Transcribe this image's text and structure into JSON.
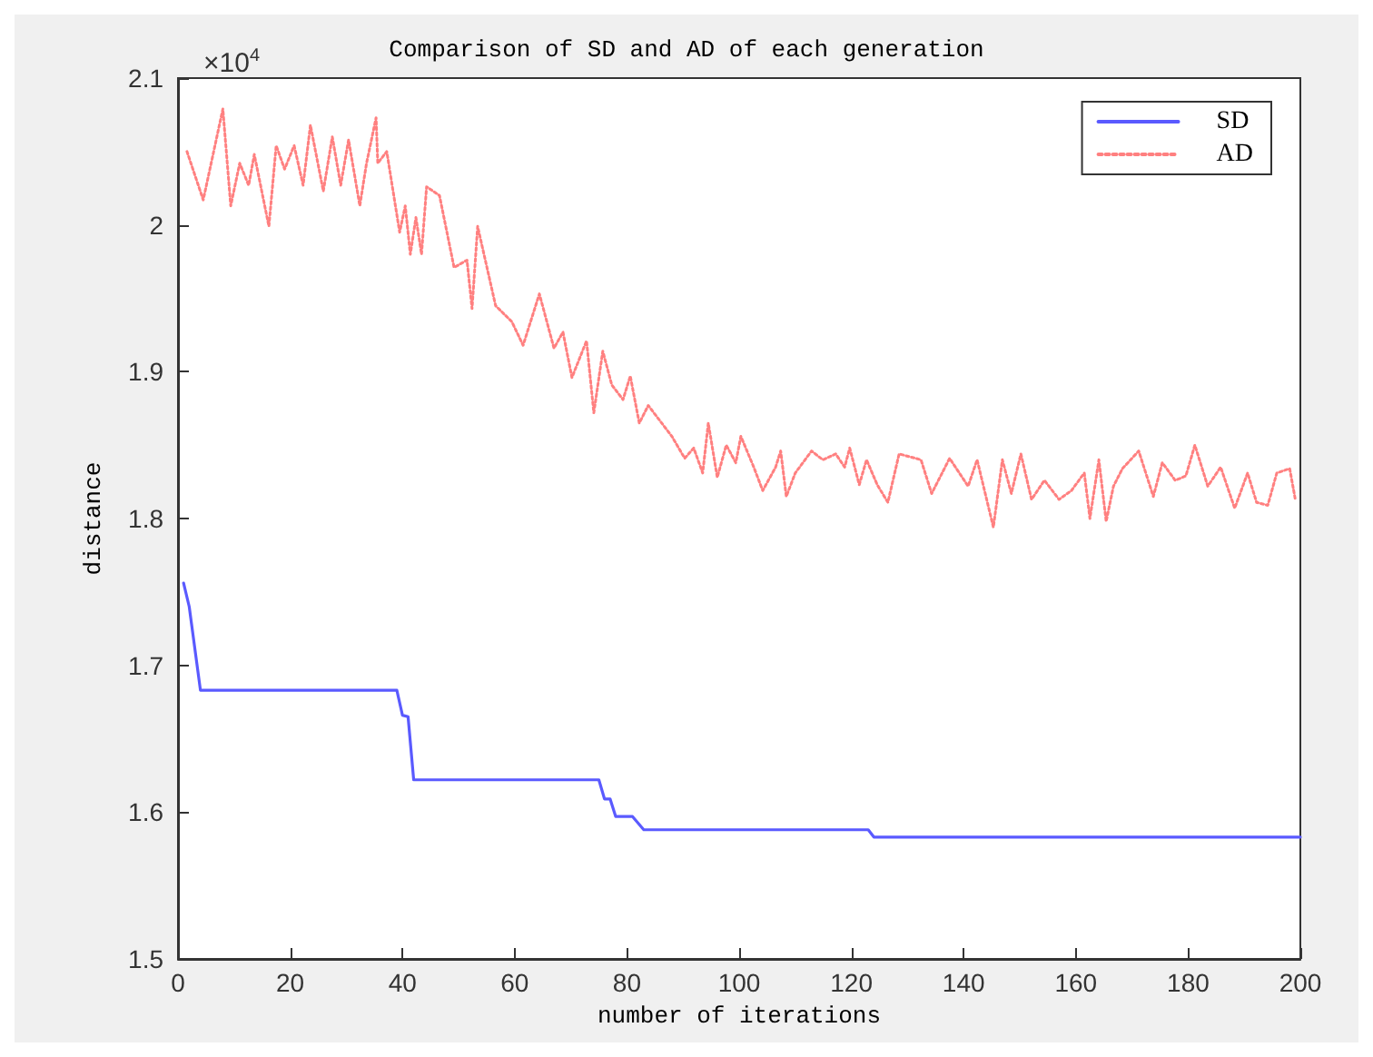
{
  "chart_data": {
    "type": "line",
    "title": "Comparison of SD and AD of each generation",
    "xlabel": "number of iterations",
    "ylabel": "distance",
    "annotations": [
      "×10$^{4}$"
    ],
    "xlim": [
      0,
      200
    ],
    "xticks": [
      0,
      20,
      40,
      60,
      80,
      100,
      120,
      140,
      160,
      180,
      200
    ],
    "ylim": [
      1.5,
      2.1
    ],
    "yticks": [
      1.5,
      1.6,
      1.7,
      1.8,
      1.9,
      2,
      2.1
    ],
    "grid": false,
    "legend": "top right",
    "marker": "none",
    "series": [
      {
        "name": "SD",
        "color": "#5a5aff",
        "line_style": "solid",
        "x": [
          1,
          2,
          4,
          39,
          40,
          41,
          42,
          75,
          76,
          77,
          78,
          81,
          83,
          123,
          124,
          200
        ],
        "values": [
          1.756,
          1.74,
          1.683,
          1.683,
          1.666,
          1.665,
          1.622,
          1.622,
          1.609,
          1.609,
          1.597,
          1.597,
          1.588,
          1.588,
          1.583,
          1.583
        ]
      },
      {
        "name": "AD",
        "color": "#ff8080",
        "line_style": "dotted",
        "x": [
          1.6,
          4.5,
          8,
          9.4,
          11,
          12.6,
          13.6,
          16.2,
          17.5,
          19,
          20.7,
          22.3,
          23.6,
          25.9,
          27.5,
          29,
          30.4,
          32.4,
          33.6,
          35.3,
          35.6,
          37.2,
          39.5,
          40.5,
          41.4,
          42.4,
          43.4,
          44.3,
          46.6,
          49.2,
          51.5,
          52.4,
          53.4,
          56.6,
          59.5,
          61.5,
          64.4,
          67,
          68.6,
          70.2,
          72.8,
          74.1,
          75.7,
          77.3,
          79.3,
          80.6,
          82.2,
          83.8,
          88,
          90.3,
          91.9,
          93.5,
          94.5,
          96.1,
          97.7,
          99.4,
          100.3,
          102.6,
          104.2,
          106.5,
          107.4,
          108.4,
          110,
          112.9,
          114.9,
          117.2,
          118.8,
          119.7,
          121.4,
          122.7,
          124.6,
          126.5,
          128.5,
          132.4,
          134.3,
          137.5,
          140.8,
          142.4,
          145.3,
          146.9,
          148.5,
          150.2,
          152.1,
          154.4,
          157,
          159.2,
          161.5,
          162.5,
          164.1,
          165.4,
          166.7,
          168.3,
          171.2,
          173.8,
          175.4,
          177.7,
          179.6,
          181.2,
          183.5,
          185.8,
          188.3,
          190.6,
          192.2,
          194.2,
          195.8,
          198.1,
          199.1
        ],
        "values": [
          2.05,
          2.017,
          2.079,
          2.013,
          2.042,
          2.027,
          2.048,
          1.999,
          2.054,
          2.038,
          2.054,
          2.027,
          2.068,
          2.023,
          2.06,
          2.027,
          2.058,
          2.013,
          2.042,
          2.073,
          2.042,
          2.05,
          1.995,
          2.013,
          1.98,
          2.005,
          1.98,
          2.026,
          2.02,
          1.971,
          1.976,
          1.943,
          1.999,
          1.945,
          1.934,
          1.918,
          1.953,
          1.916,
          1.927,
          1.896,
          1.921,
          1.872,
          1.914,
          1.891,
          1.881,
          1.897,
          1.865,
          1.877,
          1.856,
          1.841,
          1.848,
          1.831,
          1.865,
          1.828,
          1.85,
          1.838,
          1.856,
          1.835,
          1.819,
          1.835,
          1.846,
          1.815,
          1.831,
          1.846,
          1.84,
          1.844,
          1.835,
          1.848,
          1.823,
          1.84,
          1.823,
          1.811,
          1.844,
          1.84,
          1.817,
          1.841,
          1.822,
          1.84,
          1.794,
          1.84,
          1.817,
          1.844,
          1.813,
          1.826,
          1.813,
          1.819,
          1.831,
          1.8,
          1.84,
          1.798,
          1.822,
          1.834,
          1.846,
          1.815,
          1.838,
          1.826,
          1.829,
          1.85,
          1.822,
          1.835,
          1.807,
          1.831,
          1.811,
          1.809,
          1.831,
          1.834,
          1.813
        ]
      }
    ]
  }
}
